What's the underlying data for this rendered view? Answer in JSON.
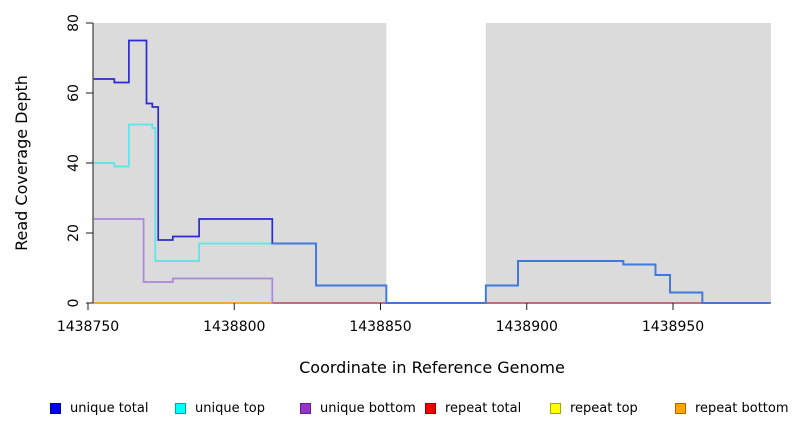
{
  "chart_data": {
    "type": "line",
    "subtype": "step-after",
    "title": "",
    "xlabel": "Coordinate in Reference Genome",
    "ylabel": "Read Coverage Depth",
    "xlim": [
      1438750,
      1438983
    ],
    "ylim": [
      0,
      80
    ],
    "x_ticks": [
      1438750,
      1438800,
      1438850,
      1438900,
      1438950
    ],
    "y_ticks": [
      0,
      20,
      40,
      60,
      80
    ],
    "grid": "off",
    "legend_position": "bottom",
    "panel_bg": "#DBDBDB",
    "band_color": "#FFFFFF",
    "uncovered_region": [
      1438852,
      1438886
    ],
    "overlap_start": 1438813,
    "overlap_line_color": "#3F7CE0",
    "series": [
      {
        "name": "unique total",
        "legend_color": "#0000EE",
        "line_color": "#2A2BD2",
        "points": [
          [
            1438752,
            64
          ],
          [
            1438759,
            63
          ],
          [
            1438764,
            75
          ],
          [
            1438770,
            57
          ],
          [
            1438772,
            56
          ],
          [
            1438774,
            18
          ],
          [
            1438779,
            19
          ],
          [
            1438788,
            24
          ],
          [
            1438813,
            17
          ],
          [
            1438828,
            5
          ],
          [
            1438852,
            0
          ],
          [
            1438886,
            5
          ],
          [
            1438897,
            12
          ],
          [
            1438933,
            11
          ],
          [
            1438944,
            8
          ],
          [
            1438949,
            3
          ],
          [
            1438960,
            0
          ]
        ],
        "end": 1438983
      },
      {
        "name": "unique top",
        "legend_color": "#00FFFF",
        "line_color": "#58E6EA",
        "points": [
          [
            1438752,
            40
          ],
          [
            1438759,
            39
          ],
          [
            1438764,
            51
          ],
          [
            1438772,
            50
          ],
          [
            1438773,
            12
          ],
          [
            1438788,
            17
          ],
          [
            1438813,
            17
          ],
          [
            1438828,
            5
          ],
          [
            1438852,
            0
          ],
          [
            1438886,
            5
          ],
          [
            1438897,
            12
          ],
          [
            1438933,
            11
          ],
          [
            1438944,
            8
          ],
          [
            1438949,
            3
          ],
          [
            1438960,
            0
          ]
        ],
        "end": 1438983
      },
      {
        "name": "unique bottom",
        "legend_color": "#9932CC",
        "line_color": "#AC84DD",
        "points": [
          [
            1438752,
            24
          ],
          [
            1438769,
            6
          ],
          [
            1438779,
            7
          ],
          [
            1438813,
            0
          ]
        ],
        "end": 1438813
      },
      {
        "name": "repeat total",
        "legend_color": "#EE0000",
        "line_color": "#C4566E",
        "points": [
          [
            1438752,
            0
          ]
        ],
        "end": 1438983
      },
      {
        "name": "repeat top",
        "legend_color": "#FFFF00",
        "line_color": "#FFE94A",
        "points": [
          [
            1438752,
            0
          ]
        ],
        "end": 1438813
      },
      {
        "name": "repeat bottom",
        "legend_color": "#FFA500",
        "line_color": "#FFA023",
        "points": [
          [
            1438752,
            0
          ]
        ],
        "end": 1438813
      }
    ],
    "legend": [
      {
        "label": "unique total",
        "color": "#0000EE"
      },
      {
        "label": "unique top",
        "color": "#00FFFF"
      },
      {
        "label": "unique bottom",
        "color": "#9932CC"
      },
      {
        "label": "repeat total",
        "color": "#EE0000"
      },
      {
        "label": "repeat top",
        "color": "#FFFF00"
      },
      {
        "label": "repeat bottom",
        "color": "#FFA500"
      }
    ]
  }
}
